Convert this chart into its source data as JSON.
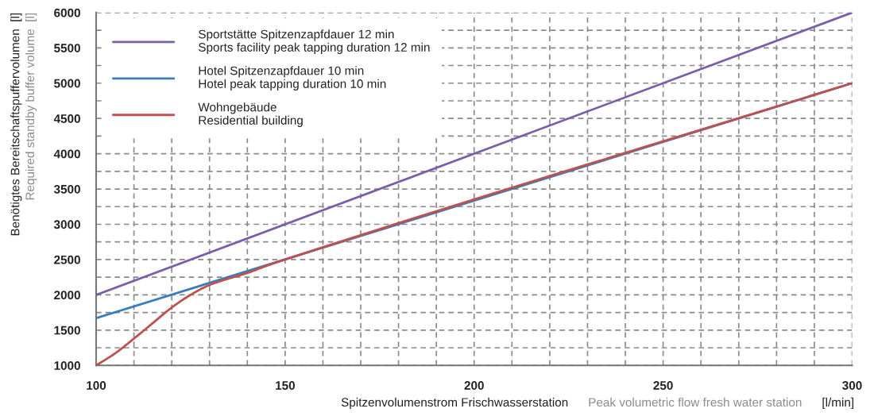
{
  "chart_data": {
    "type": "line",
    "xlabel": "Spitzenvolumenstrom Frischwasserstation\nPeak volumetric flow fresh water station\n[l/min]",
    "ylabel": "Benötigtes Bereitschaftspuffervolumen  [l]\nRequired standby buffer volume  [l]",
    "series": [
      {
        "name": "Sportstätte Spitzenzapfdauer 12 min\nSports facility peak tapping duration 12 min",
        "color": "#7a5ea8",
        "x": [
          100,
          300
        ],
        "values": [
          2000,
          6000
        ]
      },
      {
        "name": "Hotel Spitzenzapfdauer 10 min\nHotel peak tapping duration 10 min",
        "color": "#3a7dbf",
        "x": [
          100,
          300
        ],
        "values": [
          1670,
          5000
        ]
      },
      {
        "name": "Wohngebäude\nResidential building",
        "color": "#c0504d",
        "x": [
          100,
          105,
          110,
          115,
          120,
          125,
          130,
          135,
          140,
          145,
          150,
          300
        ],
        "values": [
          1000,
          1170,
          1380,
          1600,
          1820,
          2000,
          2140,
          2230,
          2310,
          2410,
          2500,
          5000
        ]
      }
    ],
    "xlim": [
      100,
      300
    ],
    "xticks": [
      100,
      {
        "value": 110,
        "label": null
      },
      {
        "value": 120,
        "label": null
      },
      {
        "value": 130,
        "label": null
      },
      {
        "value": 140,
        "label": null
      },
      150,
      {
        "value": 160,
        "label": null
      },
      {
        "value": 170,
        "label": null
      },
      {
        "value": 180,
        "label": null
      },
      {
        "value": 190,
        "label": null
      },
      200,
      {
        "value": 210,
        "label": null
      },
      {
        "value": 220,
        "label": null
      },
      {
        "value": 230,
        "label": null
      },
      {
        "value": 240,
        "label": null
      },
      250,
      {
        "value": 260,
        "label": null
      },
      {
        "value": 270,
        "label": null
      },
      {
        "value": 280,
        "label": null
      },
      {
        "value": 290,
        "label": null
      },
      300
    ],
    "ylim": [
      1000,
      6000
    ],
    "yticks": [
      1000,
      {
        "value": 1250,
        "label": null
      },
      1500,
      {
        "value": 1750,
        "label": null
      },
      2000,
      {
        "value": 2250,
        "label": null
      },
      2500,
      {
        "value": 2750,
        "label": null
      },
      3000,
      {
        "value": 3250,
        "label": null
      },
      3500,
      {
        "value": 3750,
        "label": null
      },
      4000,
      {
        "value": 4250,
        "label": null
      },
      4500,
      {
        "value": 4750,
        "label": null
      },
      5000,
      {
        "value": 5250,
        "label": null
      },
      5500,
      {
        "value": 5750,
        "label": null
      },
      6000
    ],
    "grid": true,
    "legend": "top left",
    "line_style": "solid",
    "marker": "none"
  }
}
